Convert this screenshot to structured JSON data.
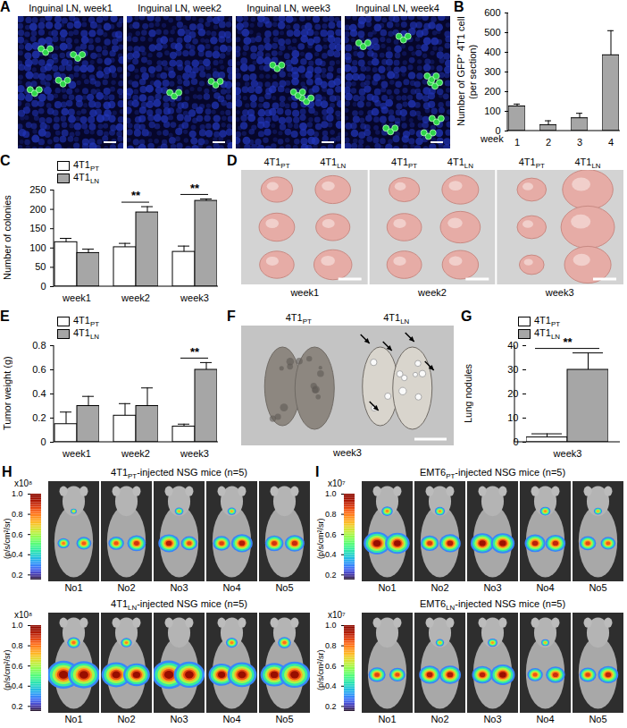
{
  "figure": {
    "A": {
      "label": "A",
      "images": [
        "Inguinal LN, week1",
        "Inguinal LN, week2",
        "Inguinal LN, week3",
        "Inguinal LN, week4"
      ]
    },
    "D": {
      "label": "D",
      "groups": [
        {
          "week": "week1",
          "columns": [
            "4T1PT",
            "4T1LN"
          ]
        },
        {
          "week": "week2",
          "columns": [
            "4T1PT",
            "4T1LN"
          ]
        },
        {
          "week": "week3",
          "columns": [
            "4T1PT",
            "4T1LN"
          ]
        }
      ]
    },
    "F": {
      "label": "F",
      "columns": [
        "4T1PT",
        "4T1LN"
      ],
      "week": "week3"
    },
    "H": {
      "label": "H",
      "rows": [
        {
          "title": "4T1PT-injected NSG mice (n=5)",
          "mice": [
            "No1",
            "No2",
            "No3",
            "No4",
            "No5"
          ]
        },
        {
          "title": "4T1LN-injected NSG mice (n=5)",
          "mice": [
            "No1",
            "No2",
            "No3",
            "No4",
            "No5"
          ]
        }
      ],
      "colorbar": {
        "scale_label": "x10⁸",
        "unit": "(p/s/cm²/sr)",
        "range": [
          0.15,
          1
        ],
        "ticks": [
          0.2,
          0.4,
          0.6,
          0.8,
          {
            "value": 1,
            "label": "1.0"
          }
        ]
      }
    },
    "I": {
      "label": "I",
      "rows": [
        {
          "title": "EMT6PT-injected NSG mice (n=5)",
          "mice": [
            "No1",
            "No2",
            "No3",
            "No4",
            "No5"
          ]
        },
        {
          "title": "EMT6LN-injected NSG mice (n=5)",
          "mice": [
            "No1",
            "No2",
            "No3",
            "No4",
            "No5"
          ]
        }
      ],
      "colorbar": {
        "scale_label": "x10⁷",
        "unit": "(p/s/cm²/sr)",
        "range": [
          0.15,
          1
        ],
        "ticks": [
          0.2,
          0.4,
          0.6,
          0.8,
          {
            "value": 1,
            "label": "1.0"
          }
        ]
      }
    }
  },
  "chart_data": [
    {
      "panel": "B",
      "type": "bar",
      "xlabel": "week",
      "ylabel": [
        "Number of GFP⁺ 4T1 cell",
        "(per section)"
      ],
      "categories": [
        "1",
        "2",
        "3",
        "4"
      ],
      "values": [
        125,
        30,
        65,
        385
      ],
      "errors": [
        12,
        22,
        25,
        125
      ],
      "color": "#a6a6a6",
      "ylim": [
        0,
        600
      ],
      "yticks": [
        0,
        100,
        200,
        300,
        400,
        500,
        600
      ]
    },
    {
      "panel": "C",
      "type": "bar",
      "ylabel": "Number of colonies",
      "categories": [
        "week1",
        "week2",
        "week3"
      ],
      "series": [
        {
          "name": "4T1PT",
          "color": "#ffffff",
          "values": [
            115,
            102,
            90
          ],
          "errors": [
            10,
            10,
            15
          ]
        },
        {
          "name": "4T1LN",
          "color": "#a6a6a6",
          "values": [
            87,
            192,
            222
          ],
          "errors": [
            10,
            15,
            5
          ]
        }
      ],
      "ylim": [
        0,
        250
      ],
      "yticks": [
        0,
        50,
        100,
        150,
        200,
        250
      ],
      "legend": "top-left",
      "annotations": [
        {
          "category": "week2",
          "label": "**"
        },
        {
          "category": "week3",
          "label": "**"
        }
      ]
    },
    {
      "panel": "E",
      "type": "bar",
      "ylabel": "Tumor weight (g)",
      "categories": [
        "week1",
        "week2",
        "week3"
      ],
      "series": [
        {
          "name": "4T1PT",
          "color": "#ffffff",
          "values": [
            0.15,
            0.22,
            0.13
          ],
          "errors": [
            0.1,
            0.1,
            0.02
          ]
        },
        {
          "name": "4T1LN",
          "color": "#a6a6a6",
          "values": [
            0.3,
            0.3,
            0.6
          ],
          "errors": [
            0.08,
            0.15,
            0.06
          ]
        }
      ],
      "ylim": [
        0,
        0.8
      ],
      "yticks": [
        0,
        0.2,
        0.4,
        0.6,
        0.8
      ],
      "legend": "top-left",
      "annotations": [
        {
          "category": "week3",
          "label": "**"
        }
      ]
    },
    {
      "panel": "G",
      "type": "bar",
      "ylabel": "Lung nodules",
      "categories": [
        "week3"
      ],
      "series": [
        {
          "name": "4T1PT",
          "color": "#ffffff",
          "values": [
            2
          ],
          "errors": [
            1.5
          ]
        },
        {
          "name": "4T1LN",
          "color": "#a6a6a6",
          "values": [
            30
          ],
          "errors": [
            7
          ]
        }
      ],
      "ylim": [
        0,
        40
      ],
      "yticks": [
        0,
        10,
        20,
        30,
        40
      ],
      "legend": "top-left",
      "annotations": [
        {
          "category": "week3",
          "label": "**"
        }
      ]
    }
  ]
}
